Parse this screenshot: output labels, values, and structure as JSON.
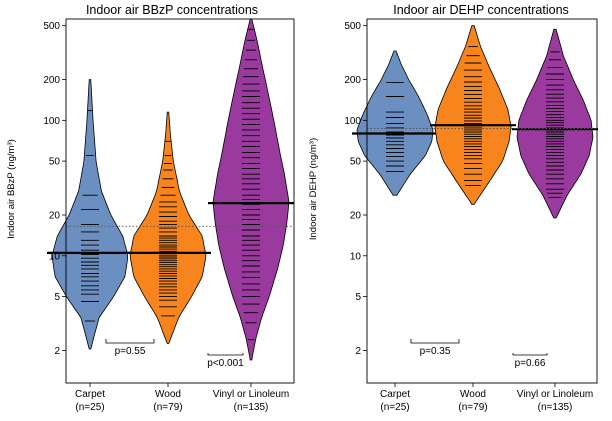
{
  "chart_data": [
    {
      "type": "beanplot",
      "title": "Indoor air BBzP concentrations",
      "ylabel": "Indoor air BBzP",
      "yunit": "(ng/m³)",
      "yscale": "log",
      "ylim": [
        1.15,
        560
      ],
      "yticks": [
        "2",
        "5",
        "10",
        "20",
        "50",
        "100",
        "200",
        "500"
      ],
      "categories": [
        {
          "name": "Carpet",
          "n": "(n=25)"
        },
        {
          "name": "Wood",
          "n": "(n=79)"
        },
        {
          "name": "Vinyl or Linoleum",
          "n": "(n=135)"
        }
      ],
      "overall_reference": 16.5,
      "series": [
        {
          "name": "Carpet",
          "color": "#6b8fc0",
          "mean": 10.5,
          "min": 2.05,
          "max": 200,
          "shape": [
            [
              2.05,
              0.02
            ],
            [
              3.5,
              0.24
            ],
            [
              5,
              0.62
            ],
            [
              7,
              0.92
            ],
            [
              10,
              1.0
            ],
            [
              14,
              0.86
            ],
            [
              20,
              0.55
            ],
            [
              30,
              0.3
            ],
            [
              50,
              0.16
            ],
            [
              100,
              0.08
            ],
            [
              200,
              0.02
            ]
          ],
          "points": [
            3.3,
            4.6,
            5.2,
            5.6,
            6,
            6.5,
            7,
            7.4,
            8,
            8.5,
            9,
            9.6,
            10.2,
            11,
            12,
            13,
            15,
            17,
            22,
            28,
            55,
            118
          ]
        },
        {
          "name": "Wood",
          "color": "#f7841c",
          "mean": 10.5,
          "min": 2.25,
          "max": 115,
          "shape": [
            [
              2.25,
              0.02
            ],
            [
              3.5,
              0.28
            ],
            [
              5,
              0.62
            ],
            [
              7,
              0.9
            ],
            [
              10,
              1.0
            ],
            [
              14,
              0.9
            ],
            [
              20,
              0.55
            ],
            [
              30,
              0.3
            ],
            [
              50,
              0.14
            ],
            [
              80,
              0.06
            ],
            [
              115,
              0.02
            ]
          ],
          "points": [
            3.6,
            4.2,
            4.7,
            5,
            5.3,
            5.6,
            5.9,
            6.2,
            6.5,
            6.8,
            7.1,
            7.4,
            7.7,
            8,
            8.3,
            8.6,
            8.9,
            9.2,
            9.5,
            9.8,
            10.1,
            10.4,
            10.8,
            11.2,
            11.6,
            12,
            12.5,
            13,
            13.5,
            14,
            15,
            16,
            17,
            18,
            19.5,
            21,
            23,
            25,
            28,
            32,
            37,
            43,
            48,
            55,
            70
          ]
        },
        {
          "name": "Vinyl or Linoleum",
          "color": "#9b3a9e",
          "mean": 24.5,
          "min": 1.7,
          "max": 560,
          "shape": [
            [
              1.7,
              0.02
            ],
            [
              2.4,
              0.12
            ],
            [
              3.5,
              0.28
            ],
            [
              5,
              0.48
            ],
            [
              8,
              0.7
            ],
            [
              12,
              0.85
            ],
            [
              18,
              0.95
            ],
            [
              25,
              1.0
            ],
            [
              40,
              0.88
            ],
            [
              60,
              0.75
            ],
            [
              100,
              0.6
            ],
            [
              160,
              0.45
            ],
            [
              250,
              0.3
            ],
            [
              400,
              0.15
            ],
            [
              560,
              0.02
            ]
          ],
          "points": [
            2.4,
            3.2,
            3.8,
            4.4,
            5,
            5.6,
            6.2,
            6.9,
            7.6,
            8.4,
            9.2,
            10,
            11,
            12,
            13,
            14,
            15.5,
            17,
            18.5,
            20,
            22,
            24,
            26,
            28,
            31,
            34,
            37,
            40,
            44,
            48,
            53,
            58,
            64,
            70,
            77,
            85,
            93,
            102,
            112,
            123,
            135,
            150,
            165,
            185,
            210,
            240,
            280,
            330,
            390,
            470
          ]
        }
      ],
      "comparisons": [
        {
          "label": "p=0.55",
          "from": "Carpet",
          "to": "Wood"
        },
        {
          "label": "p<0.001",
          "from": "Wood",
          "to": "Vinyl or Linoleum"
        }
      ]
    },
    {
      "type": "beanplot",
      "title": "Indoor air DEHP concentrations",
      "ylabel": "Indoor air DEHP",
      "yunit": "(ng/m³)",
      "yscale": "log",
      "ylim": [
        1.15,
        560
      ],
      "yticks": [
        "2",
        "5",
        "10",
        "20",
        "50",
        "100",
        "200",
        "500"
      ],
      "categories": [
        {
          "name": "Carpet",
          "n": "(n=25)"
        },
        {
          "name": "Wood",
          "n": "(n=79)"
        },
        {
          "name": "Vinyl or Linoleum",
          "n": "(n=135)"
        }
      ],
      "overall_reference": 87,
      "series": [
        {
          "name": "Carpet",
          "color": "#6b8fc0",
          "mean": 80,
          "min": 28,
          "max": 325,
          "shape": [
            [
              28,
              0.05
            ],
            [
              40,
              0.4
            ],
            [
              55,
              0.8
            ],
            [
              70,
              0.97
            ],
            [
              85,
              1.0
            ],
            [
              110,
              0.85
            ],
            [
              150,
              0.62
            ],
            [
              200,
              0.36
            ],
            [
              260,
              0.16
            ],
            [
              325,
              0.03
            ]
          ],
          "points": [
            42,
            46,
            50,
            54,
            58,
            62,
            66,
            70,
            74,
            78,
            82,
            88,
            95,
            105,
            115,
            150,
            190
          ]
        },
        {
          "name": "Wood",
          "color": "#f7841c",
          "mean": 92,
          "min": 24,
          "max": 500,
          "shape": [
            [
              24,
              0.03
            ],
            [
              35,
              0.42
            ],
            [
              50,
              0.78
            ],
            [
              70,
              0.95
            ],
            [
              90,
              1.0
            ],
            [
              120,
              0.92
            ],
            [
              170,
              0.7
            ],
            [
              250,
              0.42
            ],
            [
              350,
              0.2
            ],
            [
              500,
              0.03
            ]
          ],
          "points": [
            33,
            36,
            40,
            44,
            48,
            52,
            55,
            58,
            61,
            64,
            67,
            70,
            73,
            76,
            79,
            82,
            85,
            88,
            91,
            95,
            99,
            104,
            109,
            115,
            121,
            128,
            136,
            145,
            155,
            166,
            178,
            192,
            210,
            235,
            265,
            300,
            350
          ]
        },
        {
          "name": "Vinyl or Linoleum",
          "color": "#9b3a9e",
          "mean": 86,
          "min": 19,
          "max": 470,
          "shape": [
            [
              19,
              0.03
            ],
            [
              28,
              0.32
            ],
            [
              40,
              0.68
            ],
            [
              55,
              0.9
            ],
            [
              75,
              1.0
            ],
            [
              100,
              0.95
            ],
            [
              140,
              0.75
            ],
            [
              200,
              0.48
            ],
            [
              300,
              0.22
            ],
            [
              470,
              0.03
            ]
          ],
          "points": [
            27,
            29,
            31,
            34,
            37,
            40,
            43,
            46,
            49,
            52,
            55,
            58,
            61,
            64,
            67,
            70,
            73,
            76,
            79,
            82,
            85,
            88,
            92,
            96,
            100,
            105,
            110,
            116,
            122,
            129,
            137,
            146,
            156,
            168,
            182,
            200,
            220,
            245,
            280,
            320
          ]
        }
      ],
      "comparisons": [
        {
          "label": "p=0.35",
          "from": "Carpet",
          "to": "Wood"
        },
        {
          "label": "p=0.66",
          "from": "Wood",
          "to": "Vinyl or Linoleum"
        }
      ]
    }
  ]
}
